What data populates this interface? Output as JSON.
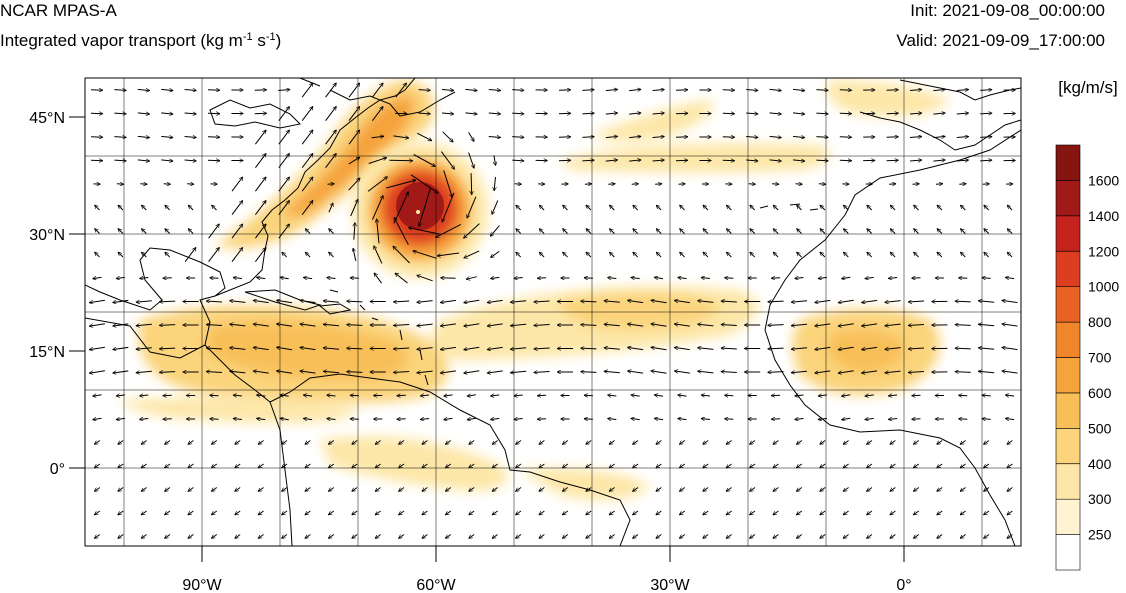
{
  "header": {
    "model": "NCAR MPAS-A",
    "field_prefix": "Integrated vapor transport (kg m",
    "exp1": "-1",
    "field_mid": " s",
    "exp2": "-1",
    "field_suffix": ")",
    "init": "Init: 2021-09-08_00:00:00",
    "valid": "Valid: 2021-09-09_17:00:00"
  },
  "axes": {
    "lat_labels": [
      "45°N",
      "30°N",
      "15°N",
      "0°"
    ],
    "lon_labels": [
      "90°W",
      "60°W",
      "30°W",
      "0°"
    ],
    "lon_range": [
      -105,
      15
    ],
    "lat_range": [
      -10,
      50
    ]
  },
  "colorbar": {
    "units": "[kg/m/s]",
    "levels": [
      "250",
      "300",
      "400",
      "500",
      "600",
      "700",
      "800",
      "1000",
      "1200",
      "1400",
      "1600"
    ],
    "colors": [
      "#ffffff",
      "#fff3d2",
      "#fde7a8",
      "#fbd47c",
      "#f8bf58",
      "#f5a33b",
      "#f0862b",
      "#e96424",
      "#dc3e1f",
      "#c4231d",
      "#a21a17",
      "#86140f"
    ]
  }
}
